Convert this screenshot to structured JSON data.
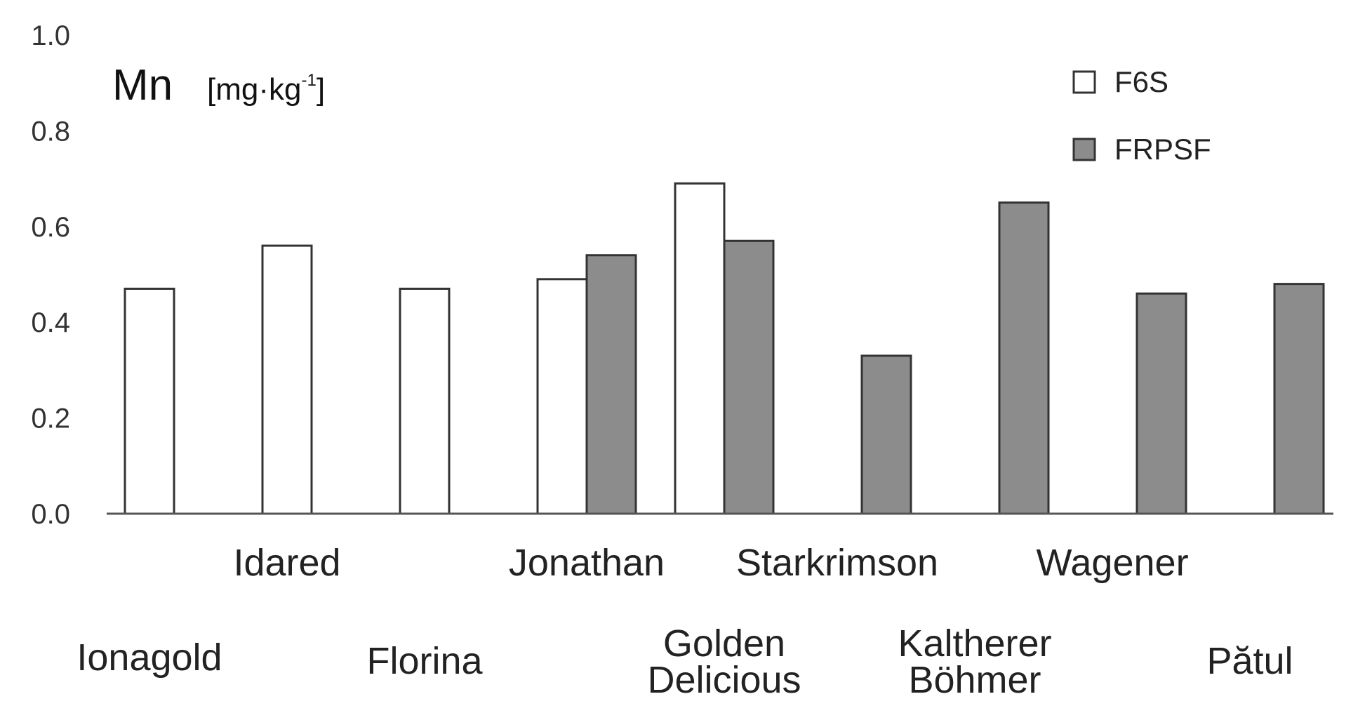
{
  "chart_data": {
    "type": "bar",
    "ylabel": "Mn",
    "ylabel_unit": "[mg·kg",
    "ylabel_unit_exp": "-1",
    "ylabel_unit_close": "]",
    "ylim": [
      0,
      1.0
    ],
    "yticks": [
      "0.0",
      "0.2",
      "0.4",
      "0.6",
      "0.8",
      "1.0"
    ],
    "grid": false,
    "legend_position": "top-right",
    "categories": [
      "Ionagold",
      "Idared",
      "Florina",
      "Jonathan",
      "Golden Delicious",
      "Starkrimson",
      "Kaltherer Böhmer",
      "Wagener",
      "Pătul"
    ],
    "category_lines": [
      [
        "Ionagold"
      ],
      [
        "Idared"
      ],
      [
        "Florina"
      ],
      [
        "Jonathan"
      ],
      [
        "Golden",
        "Delicious"
      ],
      [
        "Starkrimson"
      ],
      [
        "Kaltherer",
        "Böhmer"
      ],
      [
        "Wagener"
      ],
      [
        "Pătul"
      ]
    ],
    "series": [
      {
        "name": "F6S",
        "color": "#ffffff",
        "values": [
          0.47,
          0.56,
          0.47,
          0.49,
          0.69,
          null,
          null,
          null,
          null
        ]
      },
      {
        "name": "FRPSF",
        "color": "#8c8c8c",
        "values": [
          null,
          null,
          null,
          0.54,
          0.57,
          0.33,
          0.65,
          0.46,
          0.48
        ]
      }
    ]
  }
}
